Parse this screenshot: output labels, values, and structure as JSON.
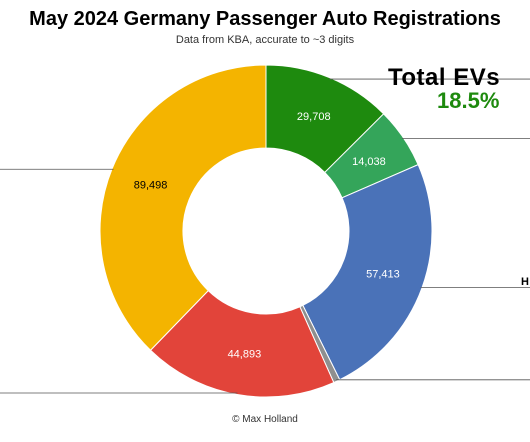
{
  "chart_data": {
    "type": "pie",
    "style": "donut",
    "title": "May 2024 Germany Passenger Auto Registrations",
    "subtitle": "Data from KBA, accurate to ~3 digits",
    "callout": {
      "heading": "Total EVs",
      "value": "18.5%"
    },
    "partial_label": "H",
    "credit": "© Max Holland",
    "slices": [
      {
        "value": 29708,
        "label": "29,708",
        "color": "#1e8a0e"
      },
      {
        "value": 14038,
        "label": "14,038",
        "color": "#34a55a"
      },
      {
        "value": 57413,
        "label": "57,413",
        "color": "#4a72b8"
      },
      {
        "value": 1500,
        "label": "",
        "color": "#8f8f8f"
      },
      {
        "value": 44893,
        "label": "44,893",
        "color": "#e2443a"
      },
      {
        "value": 89498,
        "label": "89,498",
        "color": "#f4b400"
      }
    ],
    "leader_lines": [
      {
        "slice": 0,
        "side": "right"
      },
      {
        "slice": 1,
        "side": "right"
      },
      {
        "slice": 2,
        "side": "right"
      },
      {
        "slice": 3,
        "side": "right"
      },
      {
        "slice": 4,
        "side": "left"
      },
      {
        "slice": 5,
        "side": "left"
      }
    ]
  }
}
